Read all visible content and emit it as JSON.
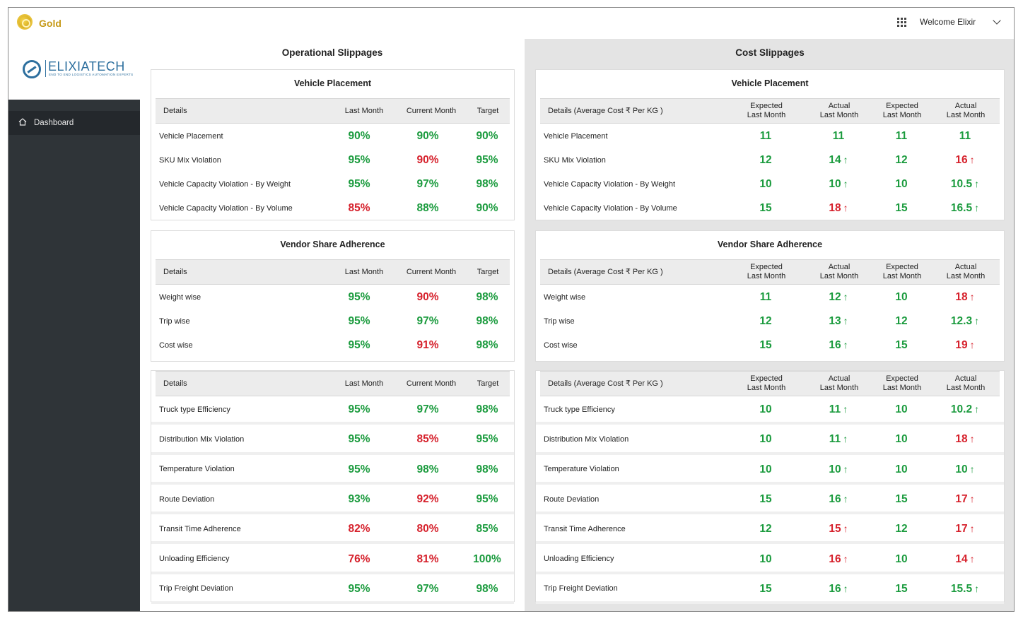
{
  "app": {
    "name": "Gold",
    "welcome": "Welcome Elixir",
    "brand": "ELIXIATECH",
    "brand_tagline": "END TO END LOGISTICS AUTOMATION EXPERTS"
  },
  "sidebar": {
    "items": [
      {
        "label": "Dashboard"
      }
    ]
  },
  "operational": {
    "title": "Operational Slippages",
    "headers": {
      "details": "Details",
      "last": "Last Month",
      "current": "Current Month",
      "target": "Target"
    },
    "placement": {
      "title": "Vehicle Placement",
      "rows": [
        {
          "label": "Vehicle Placement",
          "last": "90%",
          "last_c": "g",
          "current": "90%",
          "current_c": "g",
          "target": "90%",
          "target_c": "g"
        },
        {
          "label": "SKU Mix Violation",
          "last": "95%",
          "last_c": "g",
          "current": "90%",
          "current_c": "r",
          "target": "95%",
          "target_c": "g"
        },
        {
          "label": "Vehicle Capacity Violation - By Weight",
          "last": "95%",
          "last_c": "g",
          "current": "97%",
          "current_c": "g",
          "target": "98%",
          "target_c": "g"
        },
        {
          "label": "Vehicle Capacity Violation - By Volume",
          "last": "85%",
          "last_c": "r",
          "current": "88%",
          "current_c": "g",
          "target": "90%",
          "target_c": "g"
        }
      ]
    },
    "vendor": {
      "title": "Vendor Share Adherence",
      "rows": [
        {
          "label": "Weight wise",
          "last": "95%",
          "last_c": "g",
          "current": "90%",
          "current_c": "r",
          "target": "98%",
          "target_c": "g"
        },
        {
          "label": "Trip wise",
          "last": "95%",
          "last_c": "g",
          "current": "97%",
          "current_c": "g",
          "target": "98%",
          "target_c": "g"
        },
        {
          "label": "Cost wise",
          "last": "95%",
          "last_c": "g",
          "current": "91%",
          "current_c": "r",
          "target": "98%",
          "target_c": "g"
        }
      ]
    },
    "other": {
      "rows": [
        {
          "label": "Truck type Efficiency",
          "last": "95%",
          "last_c": "g",
          "current": "97%",
          "current_c": "g",
          "target": "98%",
          "target_c": "g"
        },
        {
          "label": "Distribution Mix Violation",
          "last": "95%",
          "last_c": "g",
          "current": "85%",
          "current_c": "r",
          "target": "95%",
          "target_c": "g"
        },
        {
          "label": "Temperature Violation",
          "last": "95%",
          "last_c": "g",
          "current": "98%",
          "current_c": "g",
          "target": "98%",
          "target_c": "g"
        },
        {
          "label": "Route Deviation",
          "last": "93%",
          "last_c": "g",
          "current": "92%",
          "current_c": "r",
          "target": "95%",
          "target_c": "g"
        },
        {
          "label": "Transit Time Adherence",
          "last": "82%",
          "last_c": "r",
          "current": "80%",
          "current_c": "r",
          "target": "85%",
          "target_c": "g"
        },
        {
          "label": "Unloading Efficiency",
          "last": "76%",
          "last_c": "r",
          "current": "81%",
          "current_c": "r",
          "target": "100%",
          "target_c": "g"
        },
        {
          "label": "Trip Freight Deviation",
          "last": "95%",
          "last_c": "g",
          "current": "97%",
          "current_c": "g",
          "target": "98%",
          "target_c": "g"
        }
      ]
    }
  },
  "cost": {
    "title": "Cost Slippages",
    "headers": {
      "details": "Details (Average Cost ₹ Per KG )",
      "details_alt": "Details  (Average Cost ₹ Per KG )",
      "exp1_a": "Expected",
      "exp1_b": "Last Month",
      "act1_a": "Actual",
      "act1_b": "Last Month",
      "exp2_a": "Expected",
      "exp2_b": "Last Month",
      "act2_a": "Actual",
      "act2_b": "Last Month"
    },
    "placement": {
      "title": "Vehicle Placement",
      "rows": [
        {
          "label": "Vehicle Placement",
          "e1": "11",
          "a1": "11",
          "a1_c": "g",
          "a1_up": "",
          "e2": "11",
          "a2": "11",
          "a2_c": "g",
          "a2_up": ""
        },
        {
          "label": "SKU Mix Violation",
          "e1": "12",
          "a1": "14",
          "a1_c": "g",
          "a1_up": "↑",
          "e2": "12",
          "a2": "16",
          "a2_c": "r",
          "a2_up": "↑"
        },
        {
          "label": "Vehicle Capacity Violation - By Weight",
          "e1": "10",
          "a1": "10",
          "a1_c": "g",
          "a1_up": "↑",
          "e2": "10",
          "a2": "10.5",
          "a2_c": "g",
          "a2_up": "↑"
        },
        {
          "label": "Vehicle Capacity Violation - By Volume",
          "e1": "15",
          "a1": "18",
          "a1_c": "r",
          "a1_up": "↑",
          "e2": "15",
          "a2": "16.5",
          "a2_c": "g",
          "a2_up": "↑"
        }
      ]
    },
    "vendor": {
      "title": "Vendor Share Adherence",
      "rows": [
        {
          "label": "Weight wise",
          "e1": "11",
          "a1": "12",
          "a1_c": "g",
          "a1_up": "↑",
          "e2": "10",
          "a2": "18",
          "a2_c": "r",
          "a2_up": "↑"
        },
        {
          "label": "Trip wise",
          "e1": "12",
          "a1": "13",
          "a1_c": "g",
          "a1_up": "↑",
          "e2": "12",
          "a2": "12.3",
          "a2_c": "g",
          "a2_up": "↑"
        },
        {
          "label": "Cost wise",
          "e1": "15",
          "a1": "16",
          "a1_c": "g",
          "a1_up": "↑",
          "e2": "15",
          "a2": "19",
          "a2_c": "r",
          "a2_up": "↑"
        }
      ]
    },
    "other": {
      "rows": [
        {
          "label": "Truck type Efficiency",
          "e1": "10",
          "a1": "11",
          "a1_c": "g",
          "a1_up": "↑",
          "e2": "10",
          "a2": "10.2",
          "a2_c": "g",
          "a2_up": "↑"
        },
        {
          "label": "Distribution Mix Violation",
          "e1": "10",
          "a1": "11",
          "a1_c": "g",
          "a1_up": "↑",
          "e2": "10",
          "a2": "18",
          "a2_c": "r",
          "a2_up": "↑"
        },
        {
          "label": "Temperature Violation",
          "e1": "10",
          "a1": "10",
          "a1_c": "g",
          "a1_up": "↑",
          "e2": "10",
          "a2": "10",
          "a2_c": "g",
          "a2_up": "↑"
        },
        {
          "label": "Route Deviation",
          "e1": "15",
          "a1": "16",
          "a1_c": "g",
          "a1_up": "↑",
          "e2": "15",
          "a2": "17",
          "a2_c": "r",
          "a2_up": "↑"
        },
        {
          "label": "Transit Time Adherence",
          "e1": "12",
          "a1": "15",
          "a1_c": "r",
          "a1_up": "↑",
          "e2": "12",
          "a2": "17",
          "a2_c": "r",
          "a2_up": "↑"
        },
        {
          "label": "Unloading Efficiency",
          "e1": "10",
          "a1": "16",
          "a1_c": "r",
          "a1_up": "↑",
          "e2": "10",
          "a2": "14",
          "a2_c": "r",
          "a2_up": "↑"
        },
        {
          "label": "Trip Freight Deviation",
          "e1": "15",
          "a1": "16",
          "a1_c": "g",
          "a1_up": "↑",
          "e2": "15",
          "a2": "15.5",
          "a2_c": "g",
          "a2_up": "↑"
        }
      ]
    }
  },
  "colors": {
    "good": "#1b9b3e",
    "bad": "#d6212c",
    "sidebar": "#2f3438",
    "accent": "#c69a18",
    "brand": "#2d6f9e"
  },
  "icons": {
    "logo": "gold-coin-icon",
    "apps": "apps-grid-icon",
    "user_menu": "chevron-down-icon",
    "dashboard": "home-icon",
    "increase": "arrow-up-icon"
  }
}
